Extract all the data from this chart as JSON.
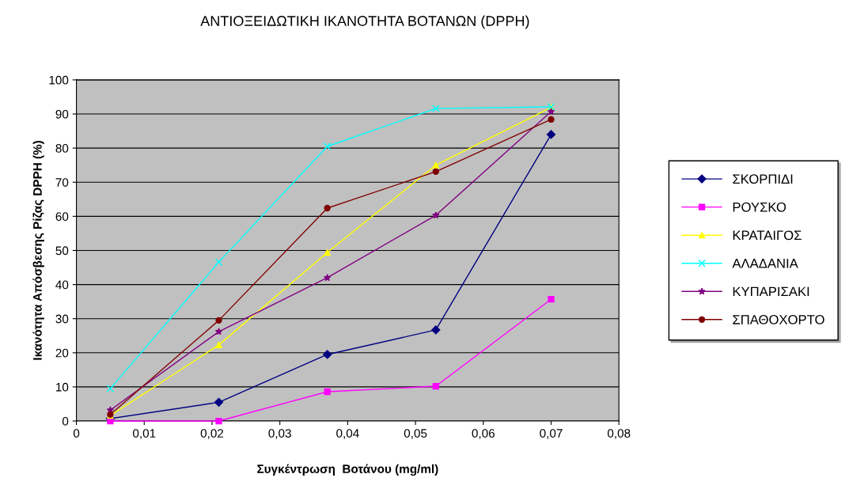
{
  "chart_data": {
    "type": "line",
    "title": "ΑΝΤΙΟΞΕΙΔΩΤΙΚΗ ΙΚΑΝΟΤΗΤΑ ΒΟΤΑΝΩΝ (DPPH)",
    "xlabel": "Συγκέντρωση  Βοτάνου (mg/ml)",
    "ylabel": "Ικανότητα Απόσβεσης Ρίζας DPPH (%)",
    "x": [
      0.005,
      0.021,
      0.037,
      0.053,
      0.07
    ],
    "series": [
      {
        "name": "ΣΚΟΡΠΙΔΙ",
        "color": "#000080",
        "marker": "diamond",
        "values": [
          0.7,
          5.5,
          19.5,
          26.7,
          84
        ]
      },
      {
        "name": "ΡΟΥΣΚΟ",
        "color": "#ff00ff",
        "marker": "square",
        "values": [
          0,
          0,
          8.6,
          10.2,
          35.7
        ]
      },
      {
        "name": "ΚΡΑΤΑΙΓΟΣ",
        "color": "#ffff00",
        "marker": "triangle",
        "values": [
          1.6,
          22.3,
          49.4,
          75,
          91.9
        ]
      },
      {
        "name": "ΑΛΑΔΑΝΙΑ",
        "color": "#00ffff",
        "marker": "cross",
        "values": [
          9.5,
          46.6,
          80.5,
          91.6,
          92.1
        ]
      },
      {
        "name": "ΚΥΠΑΡΙΣΑΚΙ",
        "color": "#800080",
        "marker": "star",
        "values": [
          3.2,
          26.2,
          42,
          60.3,
          90.7
        ]
      },
      {
        "name": "ΣΠΑΘΟΧΟΡΤΟ",
        "color": "#800000",
        "marker": "circle",
        "values": [
          1.9,
          29.5,
          62.4,
          73.1,
          88.4
        ]
      }
    ],
    "xlim": [
      0,
      0.08
    ],
    "xticks": [
      0,
      {
        "value": 0.01,
        "label": "0,01"
      },
      {
        "value": 0.02,
        "label": "0,02"
      },
      {
        "value": 0.03,
        "label": "0,03"
      },
      {
        "value": 0.04,
        "label": "0,04"
      },
      {
        "value": 0.05,
        "label": "0,05"
      },
      {
        "value": 0.06,
        "label": "0,06"
      },
      {
        "value": 0.07,
        "label": "0,07"
      },
      {
        "value": 0.08,
        "label": "0,08"
      }
    ],
    "ylim": [
      0,
      100
    ],
    "yticks": [
      0,
      10,
      20,
      30,
      40,
      50,
      60,
      70,
      80,
      90,
      100
    ],
    "grid": "y",
    "legend": "right",
    "line_style": "solid"
  }
}
